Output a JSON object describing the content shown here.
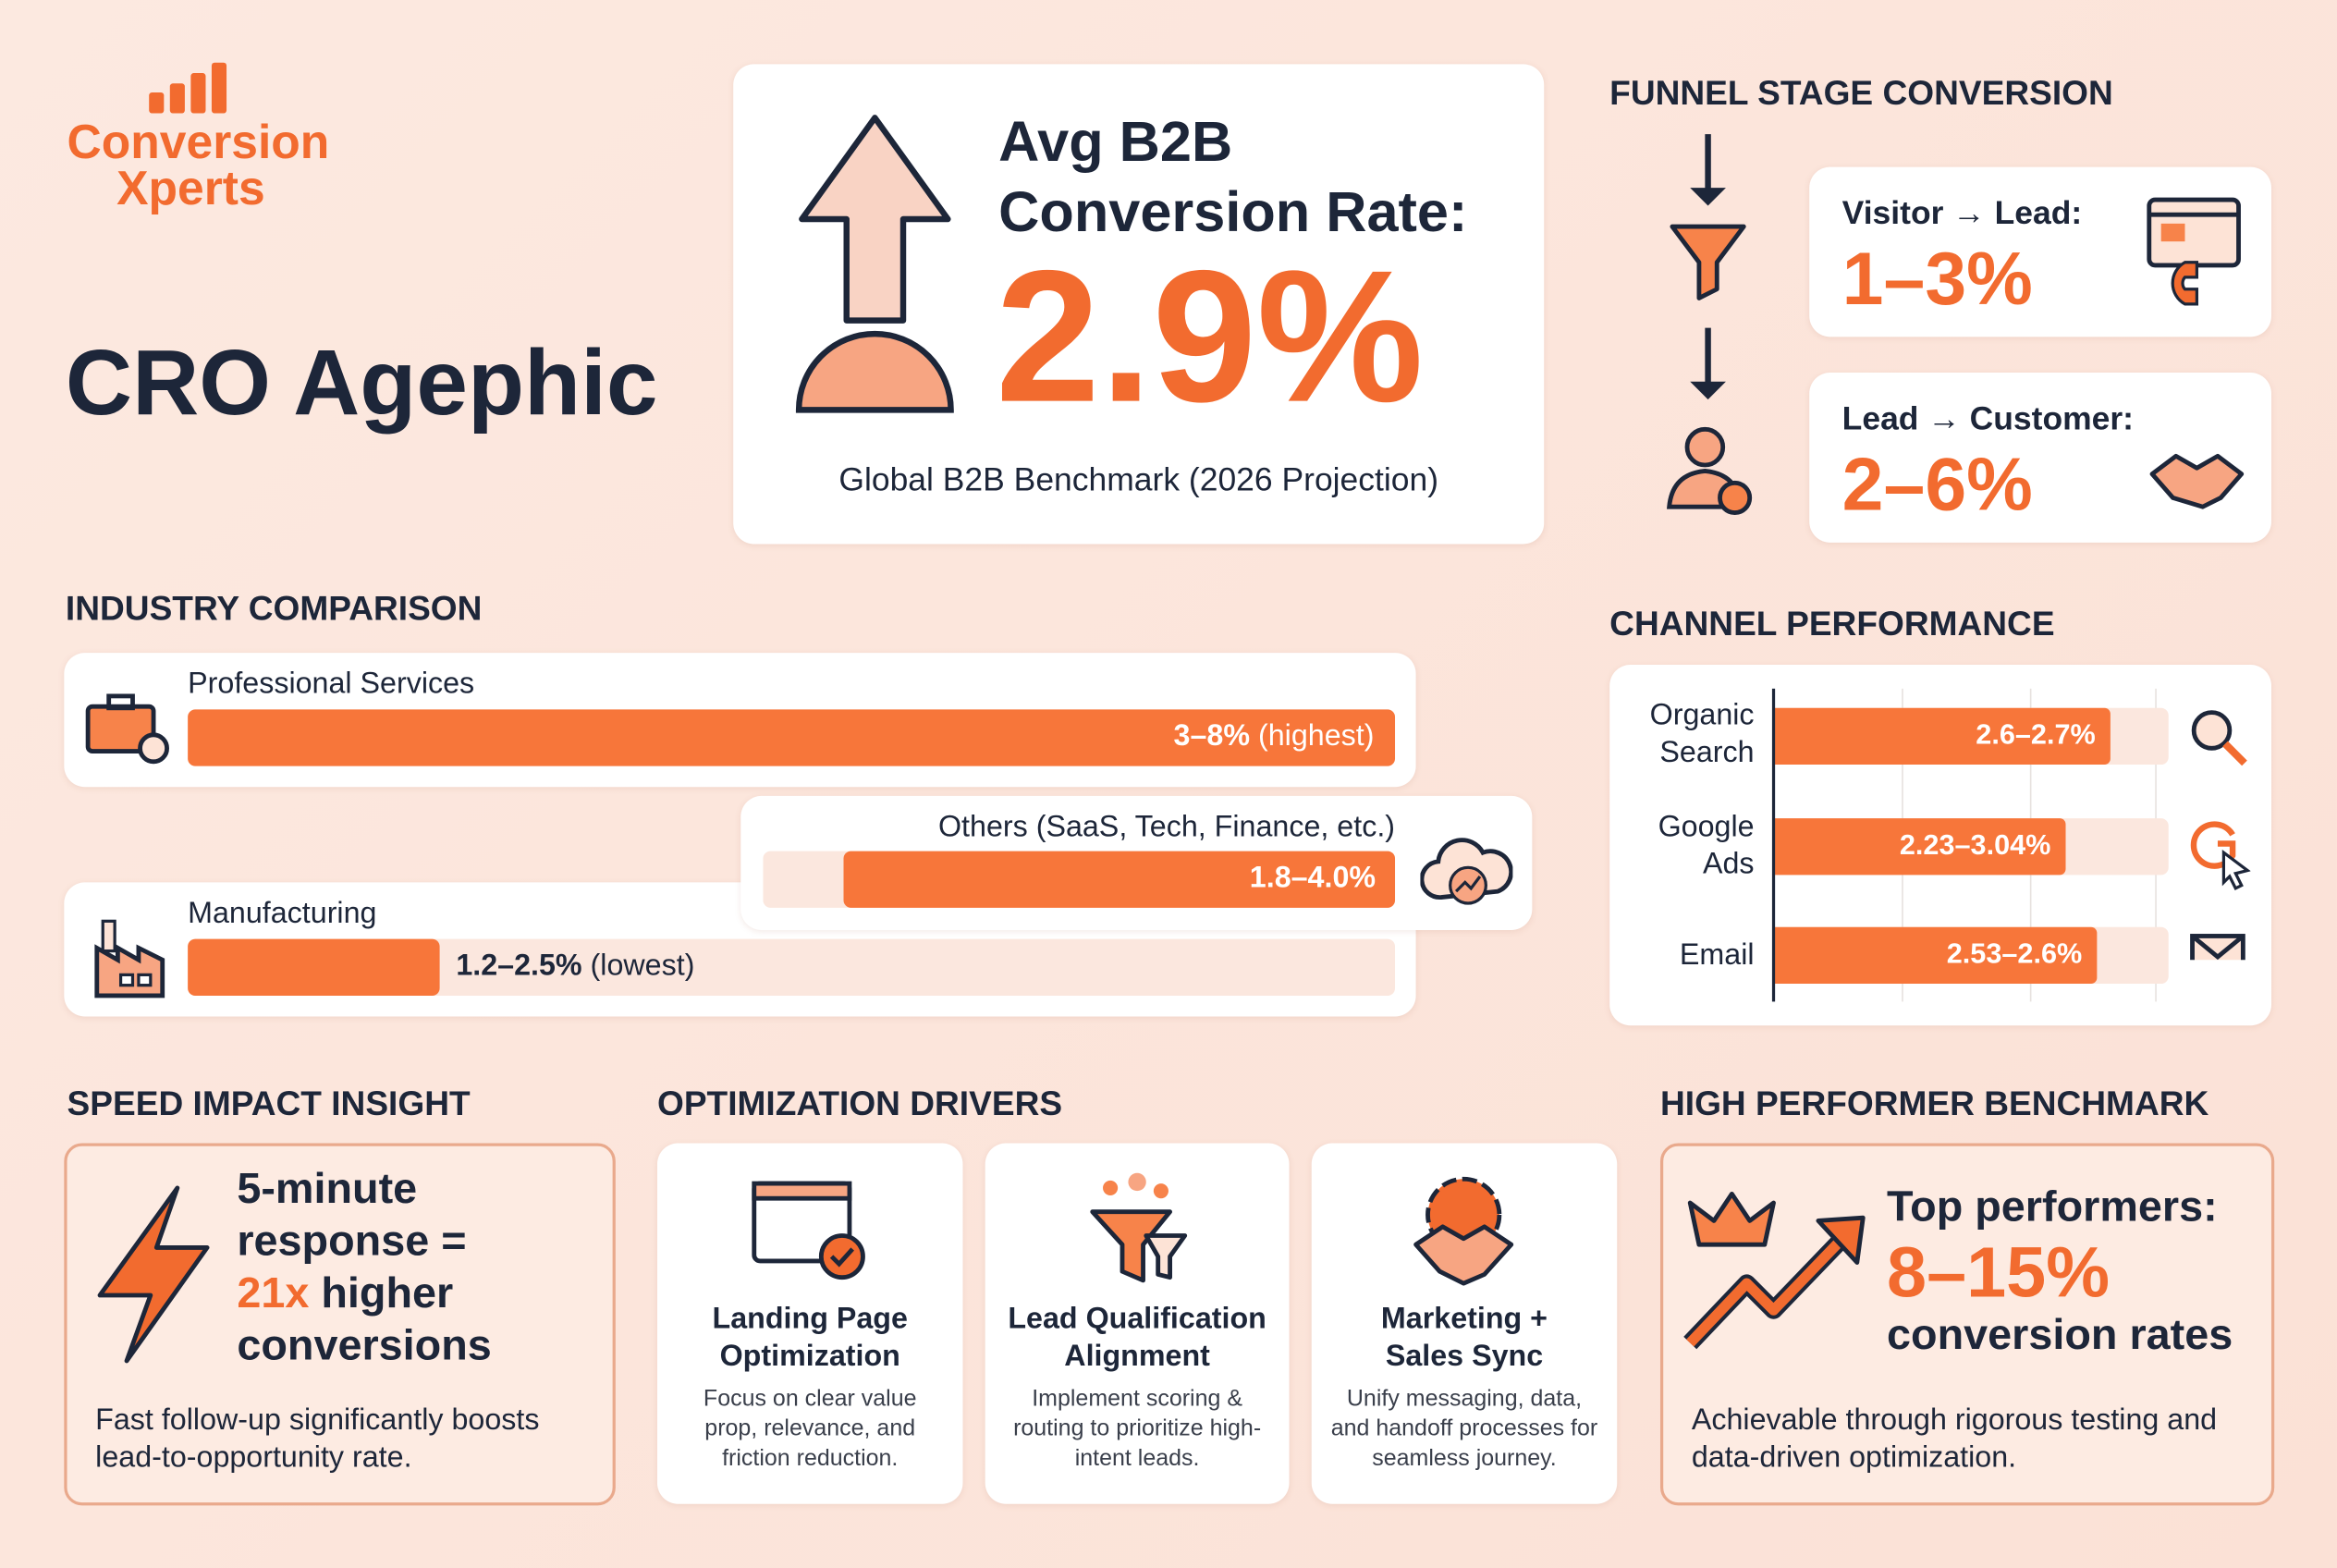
{
  "brand": {
    "line1": "Conversion",
    "line2": "Xperts"
  },
  "title": "CRO Agephic",
  "hero": {
    "heading": "Avg B2B Conversion Rate:",
    "value": "2.9%",
    "caption": "Global B2B Benchmark (2026 Projection)"
  },
  "funnel": {
    "heading": "FUNNEL STAGE CONVERSION",
    "stages": [
      {
        "label": "Visitor → Lead:",
        "value": "1–3%"
      },
      {
        "label": "Lead → Customer:",
        "value": "2–6%"
      }
    ]
  },
  "industry": {
    "heading": "INDUSTRY COMPARISON",
    "rows": [
      {
        "label": "Professional Services",
        "value": "3–8%",
        "note": "(highest)"
      },
      {
        "label": "Others (SaaS, Tech, Finance, etc.)",
        "value": "1.8–4.0%"
      },
      {
        "label": "Manufacturing",
        "value": "1.2–2.5%",
        "note": "(lowest)"
      }
    ]
  },
  "channels": {
    "heading": "CHANNEL PERFORMANCE",
    "rows": [
      {
        "label": "Organic Search",
        "value": "2.6–2.7%"
      },
      {
        "label": "Google Ads",
        "value": "2.23–3.04%"
      },
      {
        "label": "Email",
        "value": "2.53–2.6%"
      }
    ]
  },
  "speed": {
    "heading": "SPEED IMPACT INSIGHT",
    "headline_start": "5-minute response =",
    "highlight": "21x",
    "headline_end": "higher conversions",
    "body": "Fast follow-up significantly boosts lead-to-opportunity rate."
  },
  "drivers": {
    "heading": "OPTIMIZATION DRIVERS",
    "items": [
      {
        "title": "Landing Page Optimization",
        "body": "Focus on clear value prop, relevance, and friction reduction."
      },
      {
        "title": "Lead Qualification Alignment",
        "body": "Implement scoring & routing to prioritize high-intent leads."
      },
      {
        "title": "Marketing + Sales Sync",
        "body": "Unify messaging, data, and handoff processes for seamless journey."
      }
    ]
  },
  "benchmark": {
    "heading": "HIGH PERFORMER BENCHMARK",
    "line1": "Top performers:",
    "value": "8–15%",
    "line2": "conversion rates",
    "body": "Achievable through rigorous testing and data-driven optimization."
  }
}
